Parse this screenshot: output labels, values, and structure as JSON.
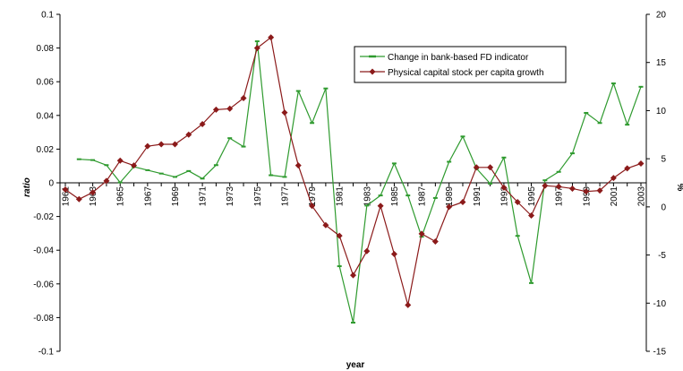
{
  "chart_data": {
    "type": "line",
    "title": "",
    "xlabel": "year",
    "ylabel": "ratio",
    "y2label": "%",
    "ylim": [
      -0.1,
      0.1
    ],
    "y2lim": [
      -15,
      20
    ],
    "yticks": [
      "0.1",
      "0.08",
      "0.06",
      "0.04",
      "0.02",
      "0",
      "-0.02",
      "-0.04",
      "-0.06",
      "-0.08",
      "-0.1"
    ],
    "y2ticks": [
      "20",
      "15",
      "10",
      "5",
      "0",
      "-5",
      "-10",
      "-15"
    ],
    "xtick_labels": [
      "1961",
      "1963",
      "1965",
      "1967",
      "1969",
      "1971",
      "1973",
      "1975",
      "1977",
      "1979",
      "1981",
      "1983",
      "1985",
      "1987",
      "1989",
      "1991",
      "1993",
      "1995",
      "1997",
      "1999",
      "2001",
      "2003"
    ],
    "years": [
      1961,
      1962,
      1963,
      1964,
      1965,
      1966,
      1967,
      1968,
      1969,
      1970,
      1971,
      1972,
      1973,
      1974,
      1975,
      1976,
      1977,
      1978,
      1979,
      1980,
      1981,
      1982,
      1983,
      1984,
      1985,
      1986,
      1987,
      1988,
      1989,
      1990,
      1991,
      1992,
      1993,
      1994,
      1995,
      1996,
      1997,
      1998,
      1999,
      2000,
      2001,
      2002,
      2003
    ],
    "legend_position": "top-right",
    "grid": false,
    "series": [
      {
        "name": "Change in bank-based FD indicator",
        "axis": "left",
        "color": "#2e9a2e",
        "marker": "dash",
        "values": [
          null,
          0.014,
          0.0135,
          0.0105,
          0.0002,
          0.0095,
          0.0075,
          0.0055,
          0.0035,
          0.007,
          0.0025,
          0.0105,
          0.0265,
          0.0215,
          0.084,
          0.0045,
          0.0035,
          0.0545,
          0.0355,
          0.056,
          -0.0495,
          -0.083,
          -0.0135,
          -0.0075,
          0.0115,
          -0.0075,
          -0.032,
          -0.009,
          0.0125,
          0.0275,
          0.0085,
          -0.0005,
          0.015,
          -0.0315,
          -0.0595,
          0.0015,
          0.0065,
          0.0175,
          0.0415,
          0.0355,
          0.059,
          0.0345,
          0.057
        ]
      },
      {
        "name": "Physical capital stock per capita growth",
        "axis": "right",
        "color": "#8b1a1a",
        "marker": "diamond",
        "values": [
          1.8,
          0.8,
          1.5,
          2.7,
          4.8,
          4.3,
          6.3,
          6.5,
          6.5,
          7.5,
          8.6,
          10.1,
          10.2,
          11.3,
          16.5,
          17.6,
          9.8,
          4.3,
          0.1,
          -1.9,
          -3.0,
          -7.1,
          -4.6,
          0.1,
          -4.9,
          -10.2,
          -2.8,
          -3.6,
          0.0,
          0.5,
          4.1,
          4.1,
          2.0,
          0.5,
          -0.9,
          2.2,
          2.1,
          1.9,
          1.6,
          1.7,
          3.0,
          4.0,
          4.5
        ]
      }
    ]
  }
}
